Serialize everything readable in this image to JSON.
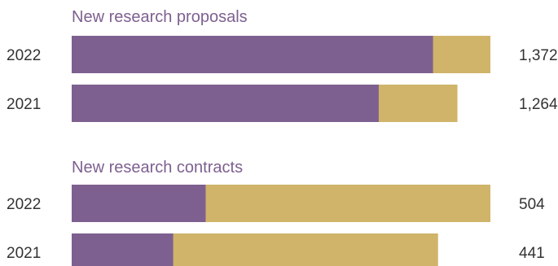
{
  "colors": {
    "primary": "#7e6090",
    "secondary": "#cfb46a",
    "title": "#7e6090",
    "label": "#333333"
  },
  "chart_data": [
    {
      "type": "bar",
      "orientation": "horizontal",
      "stacked": true,
      "title": "New research proposals",
      "categories": [
        "2022",
        "2021"
      ],
      "totals": [
        "1,372",
        "1,264"
      ],
      "total_values": [
        1372,
        1264
      ],
      "primary_share": [
        0.863,
        0.796
      ],
      "xlim": [
        0,
        1372
      ]
    },
    {
      "type": "bar",
      "orientation": "horizontal",
      "stacked": true,
      "title": "New research contracts",
      "categories": [
        "2022",
        "2021"
      ],
      "totals": [
        "504",
        "441"
      ],
      "total_values": [
        504,
        441
      ],
      "primary_share": [
        0.32,
        0.277
      ],
      "xlim": [
        0,
        504
      ]
    }
  ]
}
